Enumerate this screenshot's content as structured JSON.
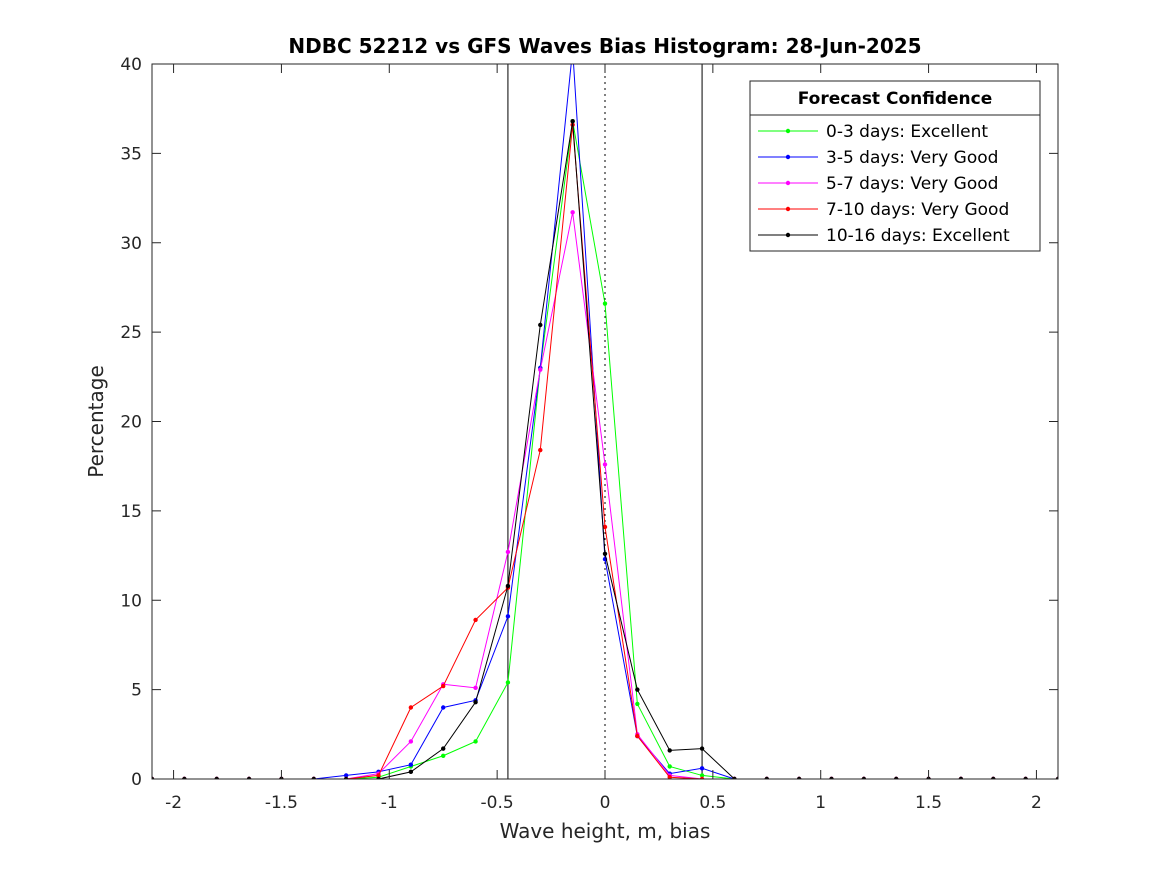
{
  "chart_data": {
    "type": "line",
    "title": "NDBC 52212 vs GFS Waves Bias Histogram: 28-Jun-2025",
    "xlabel": "Wave height, m, bias",
    "ylabel": "Percentage",
    "xlim": [
      -2.1,
      2.1
    ],
    "ylim": [
      0,
      40
    ],
    "xticks": [
      -2,
      -1.5,
      -1,
      -0.5,
      0,
      0.5,
      1,
      1.5,
      2
    ],
    "xtick_labels": [
      "-2",
      "-1.5",
      "-1",
      "-0.5",
      "0",
      "0.5",
      "1",
      "1.5",
      "2"
    ],
    "yticks": [
      0,
      5,
      10,
      15,
      20,
      25,
      30,
      35,
      40
    ],
    "ytick_labels": [
      "0",
      "5",
      "10",
      "15",
      "20",
      "25",
      "30",
      "35",
      "40"
    ],
    "grid": false,
    "reference_lines": [
      {
        "x": -0.45,
        "style": "solid"
      },
      {
        "x": 0,
        "style": "dotted"
      },
      {
        "x": 0.45,
        "style": "solid"
      }
    ],
    "legend": {
      "title": "Forecast Confidence",
      "position": "top-right"
    },
    "x": [
      -2.1,
      -1.95,
      -1.8,
      -1.65,
      -1.5,
      -1.35,
      -1.2,
      -1.05,
      -0.9,
      -0.75,
      -0.6,
      -0.45,
      -0.3,
      -0.15,
      0,
      0.15,
      0.3,
      0.45,
      0.6,
      0.75,
      0.9,
      1.05,
      1.2,
      1.35,
      1.5,
      1.65,
      1.8,
      1.95,
      2.1
    ],
    "series": [
      {
        "name": "0-3 days: Excellent",
        "color": "#00ff00",
        "values": [
          0,
          0,
          0,
          0,
          0,
          0,
          0,
          0.1,
          0.7,
          1.3,
          2.1,
          5.4,
          23.0,
          36.8,
          26.6,
          4.2,
          0.7,
          0.2,
          0,
          0,
          0,
          0,
          0,
          0,
          0,
          0,
          0,
          0,
          0
        ]
      },
      {
        "name": "3-5 days: Very Good",
        "color": "#0000ff",
        "values": [
          0,
          0,
          0,
          0,
          0,
          0,
          0.2,
          0.4,
          0.8,
          4.0,
          4.4,
          9.1,
          23.0,
          40.8,
          12.3,
          2.4,
          0.3,
          0.6,
          0,
          0,
          0,
          0,
          0,
          0,
          0,
          0,
          0,
          0,
          0
        ]
      },
      {
        "name": "5-7 days: Very Good",
        "color": "#ff00ff",
        "values": [
          0,
          0,
          0,
          0,
          0,
          0,
          0,
          0.3,
          2.1,
          5.3,
          5.1,
          12.7,
          22.9,
          31.7,
          17.6,
          2.5,
          0.2,
          0,
          0,
          0,
          0,
          0,
          0,
          0,
          0,
          0,
          0,
          0,
          0
        ]
      },
      {
        "name": "7-10 days: Very Good",
        "color": "#ff0000",
        "values": [
          0,
          0,
          0,
          0,
          0,
          0,
          0,
          0.2,
          4.0,
          5.2,
          8.9,
          10.7,
          18.4,
          36.6,
          14.1,
          2.4,
          0.1,
          0,
          0,
          0,
          0,
          0,
          0,
          0,
          0,
          0,
          0,
          0,
          0
        ]
      },
      {
        "name": "10-16 days: Excellent",
        "color": "#000000",
        "values": [
          0,
          0,
          0,
          0,
          0,
          0,
          0,
          0,
          0.4,
          1.7,
          4.3,
          10.8,
          25.4,
          36.8,
          12.6,
          5.0,
          1.6,
          1.7,
          0,
          0,
          0,
          0,
          0,
          0,
          0,
          0,
          0,
          0,
          0
        ]
      }
    ]
  }
}
